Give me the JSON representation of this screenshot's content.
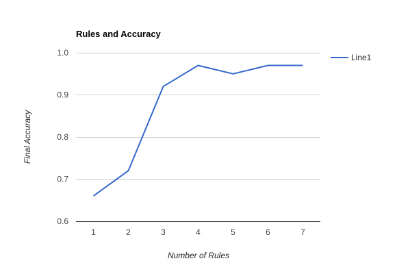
{
  "chart_data": {
    "type": "line",
    "title": "Rules and Accuracy",
    "xlabel": "Number of Rules",
    "ylabel": "Final Accuracy",
    "categories": [
      "1",
      "2",
      "3",
      "4",
      "5",
      "6",
      "7"
    ],
    "series": [
      {
        "name": "Line1",
        "color": "#3366cc",
        "values": [
          0.66,
          0.72,
          0.92,
          0.97,
          0.95,
          0.97,
          0.97
        ]
      }
    ],
    "ylim": [
      0.6,
      1.0
    ],
    "yticks": [
      "0.6",
      "0.7",
      "0.8",
      "0.9",
      "1.0"
    ],
    "grid": true,
    "legend_position": "right"
  }
}
